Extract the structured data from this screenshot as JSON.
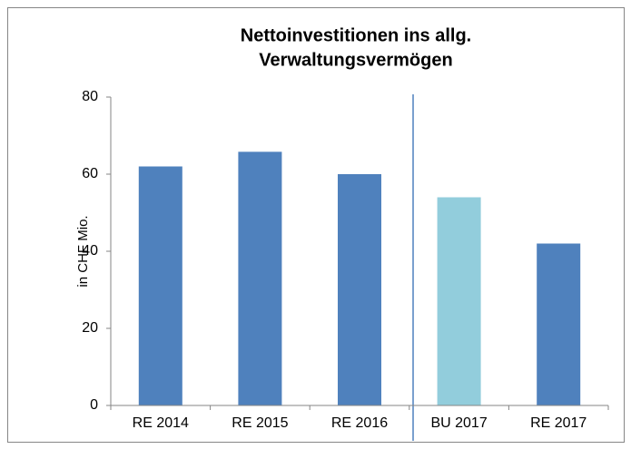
{
  "chart_data": {
    "type": "bar",
    "title": [
      "Nettoinvestitionen ins allg.",
      "Verwaltungsvermögen"
    ],
    "y_label": "in CHF Mio.",
    "categories": [
      "RE 2014",
      "RE 2015",
      "RE 2016",
      "BU 2017",
      "RE 2017"
    ],
    "values": [
      62,
      65.8,
      60,
      54,
      42
    ],
    "colors": [
      "#4f81bd",
      "#4f81bd",
      "#4f81bd",
      "#92cddc",
      "#4f81bd"
    ],
    "ylim": [
      0,
      80
    ],
    "yticks": [
      0,
      20,
      40,
      60,
      80
    ],
    "grid": false
  }
}
